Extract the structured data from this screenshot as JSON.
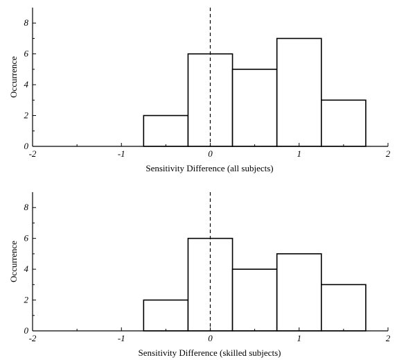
{
  "chart_data": [
    {
      "type": "bar",
      "title": "",
      "xlabel": "Sensitivity Difference (all subjects)",
      "ylabel": "Occurrence",
      "xlim": [
        -2,
        2
      ],
      "ylim": [
        0,
        9
      ],
      "xticks": [
        -2,
        -1,
        0,
        1,
        2
      ],
      "yticks": [
        0,
        2,
        4,
        6,
        8
      ],
      "bin_width": 0.5,
      "bin_centers": [
        -0.5,
        0,
        0.5,
        1,
        1.5
      ],
      "values": [
        2,
        6,
        5,
        7,
        3
      ],
      "reference_line_x": 0,
      "grid": false
    },
    {
      "type": "bar",
      "title": "",
      "xlabel": "Sensitivity Difference (skilled subjects)",
      "ylabel": "Occurrence",
      "xlim": [
        -2,
        2
      ],
      "ylim": [
        0,
        9
      ],
      "xticks": [
        -2,
        -1,
        0,
        1,
        2
      ],
      "yticks": [
        0,
        2,
        4,
        6,
        8
      ],
      "bin_width": 0.5,
      "bin_centers": [
        -0.5,
        0,
        0.5,
        1,
        1.5
      ],
      "values": [
        2,
        6,
        4,
        5,
        3
      ],
      "reference_line_x": 0,
      "grid": false
    }
  ]
}
